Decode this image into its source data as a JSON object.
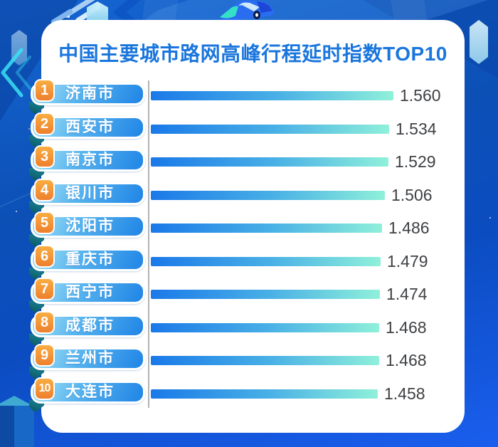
{
  "title": "中国主要城市路网高峰行程延时指数TOP10",
  "chart_data": {
    "type": "bar",
    "orientation": "horizontal",
    "title": "中国主要城市路网高峰行程延时指数TOP10",
    "categories": [
      "济南市",
      "西安市",
      "南京市",
      "银川市",
      "沈阳市",
      "重庆市",
      "西宁市",
      "成都市",
      "兰州市",
      "大连市"
    ],
    "ranks": [
      "1",
      "2",
      "3",
      "4",
      "5",
      "6",
      "7",
      "8",
      "9",
      "10"
    ],
    "values": [
      1.56,
      1.534,
      1.529,
      1.506,
      1.486,
      1.479,
      1.474,
      1.468,
      1.468,
      1.458
    ],
    "value_labels": [
      "1.560",
      "1.534",
      "1.529",
      "1.506",
      "1.486",
      "1.479",
      "1.474",
      "1.468",
      "1.468",
      "1.458"
    ],
    "xlim": [
      0,
      1.6
    ],
    "grid": false,
    "legend": "none",
    "bar_gradient": [
      "#1a79e8",
      "#8ff0da"
    ]
  },
  "colors": {
    "background_blue_top": "#1566d2",
    "background_blue_bottom": "#1a5eee",
    "card_background": "#ffffff",
    "title_text": "#1a76dd",
    "pill_gradient_start": "#a6e4f8",
    "pill_gradient_end": "#1f84e6",
    "rank_badge_orange": "#ee7f2e",
    "fold_shadow_teal": "#0c5a68",
    "value_text": "#3e4043",
    "axis_line": "#97999b"
  },
  "background": {
    "car_icon": "isometric-car-illustration",
    "decor_icons": [
      "cube-icon",
      "chevron-icon",
      "star-dot-icon",
      "ring-icon"
    ]
  }
}
